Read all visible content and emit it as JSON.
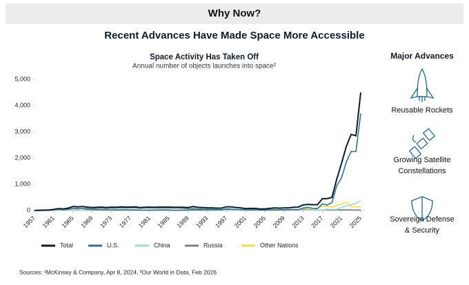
{
  "header": {
    "title": "Why Now?",
    "subtitle": "Recent Advances Have Made Space More Accessible"
  },
  "chart_data": {
    "type": "line",
    "title": "Space Activity Has Taken Off",
    "subtitle": "Annual number of objects launches into space²",
    "x": [
      1957,
      1958,
      1959,
      1960,
      1961,
      1962,
      1963,
      1964,
      1965,
      1966,
      1967,
      1968,
      1969,
      1970,
      1971,
      1972,
      1973,
      1974,
      1975,
      1976,
      1977,
      1978,
      1979,
      1980,
      1981,
      1982,
      1983,
      1984,
      1985,
      1986,
      1987,
      1988,
      1989,
      1990,
      1991,
      1992,
      1993,
      1994,
      1995,
      1996,
      1997,
      1998,
      1999,
      2000,
      2001,
      2002,
      2003,
      2004,
      2005,
      2006,
      2007,
      2008,
      2009,
      2010,
      2011,
      2012,
      2013,
      2014,
      2015,
      2016,
      2017,
      2018,
      2019,
      2020,
      2021,
      2022,
      2023,
      2024,
      2025
    ],
    "xlim": [
      1957,
      2026
    ],
    "xticks": [
      1957,
      1961,
      1965,
      1969,
      1973,
      1977,
      1981,
      1985,
      1989,
      1993,
      1997,
      2001,
      2005,
      2009,
      2013,
      2017,
      2021,
      2025
    ],
    "ylim": [
      0,
      5000
    ],
    "yticks": [
      0,
      {
        "value": 1000,
        "label": "1,000"
      },
      {
        "value": 2000,
        "label": "2,000"
      },
      {
        "value": 3000,
        "label": "3,000"
      },
      {
        "value": 4000,
        "label": "4,000"
      },
      {
        "value": 5000,
        "label": "5,000"
      }
    ],
    "series": [
      {
        "name": "Total",
        "color": "#0f1a2c",
        "values": [
          2,
          8,
          14,
          20,
          40,
          70,
          60,
          90,
          150,
          140,
          150,
          130,
          110,
          120,
          130,
          110,
          130,
          120,
          140,
          130,
          130,
          140,
          110,
          120,
          130,
          120,
          130,
          130,
          130,
          120,
          120,
          120,
          110,
          150,
          120,
          110,
          100,
          100,
          90,
          90,
          140,
          140,
          110,
          100,
          70,
          80,
          80,
          60,
          60,
          80,
          100,
          90,
          100,
          100,
          120,
          130,
          210,
          230,
          220,
          220,
          450,
          450,
          500,
          1200,
          1800,
          2450,
          2900,
          2850,
          4500
        ]
      },
      {
        "name": "U.S.",
        "color": "#2e6f8e",
        "values": [
          0,
          7,
          11,
          16,
          30,
          50,
          35,
          50,
          80,
          80,
          70,
          45,
          40,
          30,
          30,
          25,
          25,
          20,
          25,
          25,
          20,
          25,
          15,
          12,
          15,
          15,
          20,
          20,
          20,
          8,
          10,
          12,
          20,
          30,
          25,
          25,
          30,
          30,
          30,
          30,
          60,
          50,
          40,
          35,
          25,
          20,
          25,
          15,
          15,
          20,
          20,
          20,
          30,
          25,
          30,
          30,
          95,
          120,
          80,
          70,
          250,
          210,
          300,
          950,
          1250,
          1850,
          2250,
          2250,
          3700
        ]
      },
      {
        "name": "China",
        "color": "#a3d9d0",
        "values": [
          0,
          0,
          0,
          0,
          0,
          0,
          0,
          0,
          0,
          0,
          0,
          0,
          0,
          1,
          1,
          0,
          0,
          0,
          3,
          2,
          1,
          1,
          0,
          0,
          1,
          1,
          1,
          2,
          1,
          2,
          2,
          4,
          0,
          5,
          1,
          3,
          1,
          5,
          2,
          3,
          6,
          6,
          4,
          5,
          2,
          5,
          7,
          9,
          5,
          6,
          10,
          10,
          6,
          15,
          20,
          20,
          15,
          20,
          30,
          25,
          15,
          45,
          40,
          40,
          125,
          170,
          230,
          260,
          380
        ]
      },
      {
        "name": "Russia",
        "color": "#7d7d7d",
        "values": [
          2,
          1,
          3,
          4,
          10,
          20,
          25,
          40,
          65,
          55,
          75,
          75,
          65,
          80,
          90,
          75,
          95,
          90,
          100,
          95,
          100,
          100,
          85,
          95,
          100,
          95,
          95,
          95,
          95,
          95,
          95,
          85,
          70,
          75,
          65,
          55,
          50,
          45,
          35,
          25,
          30,
          25,
          30,
          35,
          25,
          25,
          20,
          20,
          20,
          25,
          25,
          25,
          30,
          30,
          35,
          30,
          35,
          35,
          30,
          20,
          20,
          20,
          25,
          20,
          25,
          25,
          20,
          15,
          20
        ]
      },
      {
        "name": "Other Nations",
        "color": "#f2dc4b",
        "values": [
          0,
          0,
          0,
          0,
          0,
          0,
          0,
          0,
          1,
          2,
          3,
          5,
          3,
          5,
          5,
          5,
          5,
          6,
          8,
          6,
          8,
          8,
          6,
          10,
          10,
          8,
          10,
          10,
          12,
          12,
          10,
          15,
          15,
          35,
          25,
          20,
          15,
          15,
          20,
          25,
          40,
          45,
          30,
          25,
          15,
          25,
          20,
          15,
          15,
          25,
          40,
          30,
          30,
          30,
          40,
          45,
          60,
          60,
          80,
          100,
          170,
          160,
          120,
          200,
          240,
          320,
          150,
          130,
          150
        ]
      }
    ]
  },
  "panel": {
    "title": "Major Advances",
    "items": [
      {
        "lines": [
          "Reusable Rockets"
        ]
      },
      {
        "lines": [
          "Growing Satellite",
          "Constellations"
        ]
      },
      {
        "lines": [
          "Sovereign Defense",
          "& Security"
        ]
      }
    ]
  },
  "footer": {
    "sources": "Sources: ¹McKinsey & Company, Apr 8, 2024, ²Our World in Data, Feb 2026"
  }
}
